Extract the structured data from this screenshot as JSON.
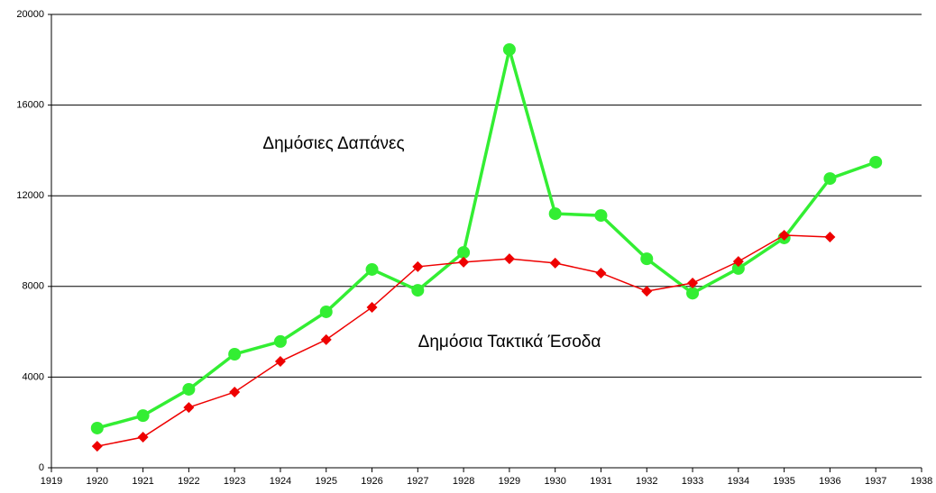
{
  "chart_data": {
    "type": "line",
    "x": [
      1920,
      1921,
      1922,
      1923,
      1924,
      1925,
      1926,
      1927,
      1928,
      1929,
      1930,
      1931,
      1932,
      1933,
      1934,
      1935,
      1936,
      1937
    ],
    "series": [
      {
        "name": "Δημόσιες Δαπάνες",
        "color": "#33ee33",
        "marker": "circle",
        "values": [
          1750,
          2300,
          3460,
          5010,
          5570,
          6880,
          8750,
          7830,
          9500,
          18450,
          11210,
          11130,
          9220,
          7700,
          8790,
          10140,
          12760,
          13480
        ]
      },
      {
        "name": "Δημόσια Τακτικά Έσοδα",
        "color": "#ee0000",
        "marker": "diamond",
        "values": [
          950,
          1350,
          2660,
          3340,
          4690,
          5650,
          7080,
          8870,
          9070,
          9220,
          9030,
          8590,
          7790,
          8150,
          9100,
          10260,
          10180,
          null
        ]
      }
    ],
    "xlim": [
      1919,
      1938
    ],
    "xticks": [
      1919,
      1920,
      1921,
      1922,
      1923,
      1924,
      1925,
      1926,
      1927,
      1928,
      1929,
      1930,
      1931,
      1932,
      1933,
      1934,
      1935,
      1936,
      1937,
      1938
    ],
    "ylim": [
      0,
      20000
    ],
    "yticks": [
      0,
      4000,
      8000,
      12000,
      16000,
      20000
    ],
    "grid": true
  }
}
